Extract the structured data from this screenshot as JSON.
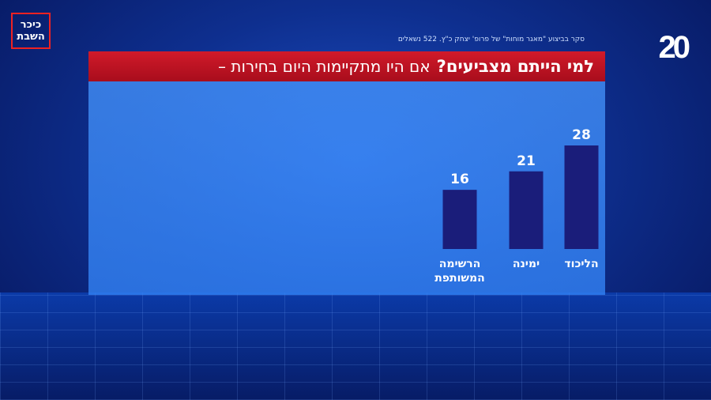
{
  "logo": {
    "line1": "כיכר",
    "line2": "השבת"
  },
  "channel_logo": "20",
  "source_note": "סקר בביצוע \"מאגר מוחות\" של פרופ' יצחק כ\"ץ. 522 נשאלים",
  "headline": {
    "bold": "למי הייתם מצביעים?",
    "regular": "אם היו מתקיימות היום בחירות –"
  },
  "colors": {
    "bar": "#1a1d7a",
    "headline_bg": "#c8142a",
    "panel": "#3f8cf0"
  },
  "chart_data": {
    "type": "bar",
    "title": "אם היו מתקיימות היום בחירות – למי הייתם מצביעים?",
    "categories": [
      "הליכוד",
      "ימינה",
      "הרשימה המשותפת"
    ],
    "category_lines": [
      [
        "הליכוד"
      ],
      [
        "ימינה"
      ],
      [
        "הרשימה",
        "המשותפת"
      ]
    ],
    "values": [
      28,
      21,
      16
    ],
    "xlabel": "",
    "ylabel": "",
    "ylim": [
      0,
      28
    ]
  }
}
